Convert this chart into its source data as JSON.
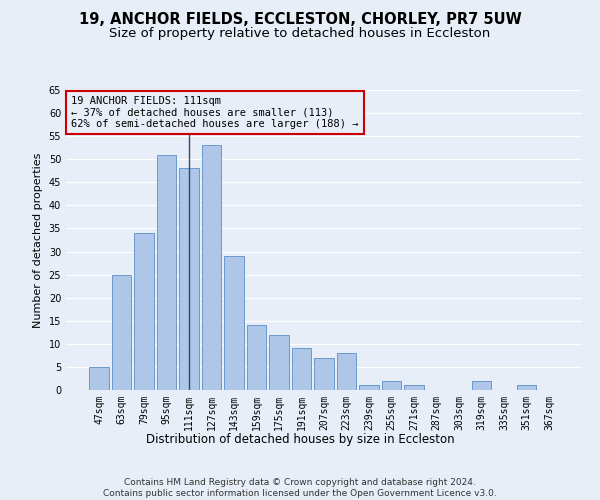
{
  "title": "19, ANCHOR FIELDS, ECCLESTON, CHORLEY, PR7 5UW",
  "subtitle": "Size of property relative to detached houses in Eccleston",
  "xlabel": "Distribution of detached houses by size in Eccleston",
  "ylabel": "Number of detached properties",
  "categories": [
    "47sqm",
    "63sqm",
    "79sqm",
    "95sqm",
    "111sqm",
    "127sqm",
    "143sqm",
    "159sqm",
    "175sqm",
    "191sqm",
    "207sqm",
    "223sqm",
    "239sqm",
    "255sqm",
    "271sqm",
    "287sqm",
    "303sqm",
    "319sqm",
    "335sqm",
    "351sqm",
    "367sqm"
  ],
  "values": [
    5,
    25,
    34,
    51,
    48,
    53,
    29,
    14,
    12,
    9,
    7,
    8,
    1,
    2,
    1,
    0,
    0,
    2,
    0,
    1,
    0
  ],
  "bar_color": "#aec6e8",
  "bar_edge_color": "#5b8fc9",
  "highlight_index": 4,
  "highlight_line_color": "#2c4a6e",
  "ylim": [
    0,
    65
  ],
  "yticks": [
    0,
    5,
    10,
    15,
    20,
    25,
    30,
    35,
    40,
    45,
    50,
    55,
    60,
    65
  ],
  "annotation_box_text": "19 ANCHOR FIELDS: 111sqm\n← 37% of detached houses are smaller (113)\n62% of semi-detached houses are larger (188) →",
  "annotation_box_color": "#cc0000",
  "background_color": "#e8eef7",
  "grid_color": "#ffffff",
  "footer_text": "Contains HM Land Registry data © Crown copyright and database right 2024.\nContains public sector information licensed under the Open Government Licence v3.0.",
  "title_fontsize": 10.5,
  "subtitle_fontsize": 9.5,
  "xlabel_fontsize": 8.5,
  "ylabel_fontsize": 8,
  "tick_fontsize": 7,
  "annotation_fontsize": 7.5,
  "footer_fontsize": 6.5
}
